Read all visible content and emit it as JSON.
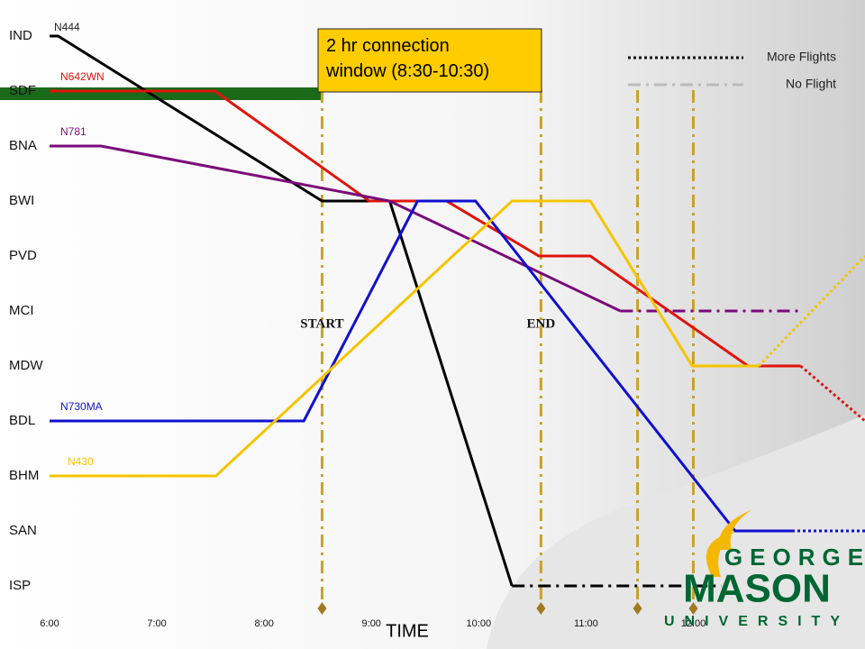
{
  "chart_data": {
    "type": "line",
    "xlabel": "TIME",
    "categories": [
      "IND",
      "SDF",
      "BNA",
      "BWI",
      "PVD",
      "MCI",
      "MDW",
      "BDL",
      "BHM",
      "SAN",
      "ISP"
    ],
    "xlim": [
      6,
      13.6
    ],
    "xticks": [
      {
        "value": 6,
        "label": "6:00"
      },
      {
        "value": 7,
        "label": "7:00"
      },
      {
        "value": 8,
        "label": "8:00"
      },
      {
        "value": 9,
        "label": "9:00"
      },
      {
        "value": 10,
        "label": "10:00"
      },
      {
        "value": 11,
        "label": "11:00"
      },
      {
        "value": 12,
        "label": "12:00"
      }
    ],
    "series": [
      {
        "name": "N444",
        "color": "#000000",
        "x": [
          6,
          6.08,
          8.54,
          9.17,
          10.31
        ],
        "values": [
          "IND",
          "IND",
          "BWI",
          "BWI",
          "ISP"
        ],
        "ext": {
          "style": "dash-dot",
          "x": [
            10.31,
            12.26
          ],
          "values": [
            "ISP",
            "ISP"
          ]
        }
      },
      {
        "name": "N642WN",
        "color": "#e0140a",
        "x": [
          6,
          7.54,
          8.98,
          9.7,
          10.56,
          11.04,
          12.51,
          13.0
        ],
        "values": [
          "SDF",
          "SDF",
          "BWI",
          "BWI",
          "PVD",
          "PVD",
          "MDW",
          "MDW"
        ],
        "ext": {
          "style": "dotted",
          "x": [
            13.0,
            13.6
          ],
          "values": [
            "MDW",
            "BDL"
          ]
        }
      },
      {
        "name": "N781",
        "color": "#7a0a7a",
        "x": [
          6,
          6.48,
          9.17,
          11.32
        ],
        "values": [
          "BNA",
          "BNA",
          "BWI",
          "MCI"
        ],
        "ext": {
          "style": "dash-dot",
          "x": [
            11.32,
            13.0
          ],
          "values": [
            "MCI",
            "MCI"
          ]
        }
      },
      {
        "name": "N730MA",
        "color": "#1010d0",
        "x": [
          6,
          8.37,
          9.43,
          9.97,
          12.39,
          12.92
        ],
        "values": [
          "BDL",
          "BDL",
          "BWI",
          "BWI",
          "SAN",
          "SAN"
        ],
        "ext": {
          "style": "dotted",
          "x": [
            12.92,
            13.6
          ],
          "values": [
            "SAN",
            "SAN"
          ]
        }
      },
      {
        "name": "N430",
        "color": "#f5c400",
        "x": [
          6,
          7.55,
          10.31,
          11.04,
          11.99,
          12.61
        ],
        "values": [
          "BHM",
          "BHM",
          "BWI",
          "BWI",
          "MDW",
          "MDW"
        ],
        "ext": {
          "style": "dotted",
          "x": [
            12.61,
            13.6
          ],
          "values": [
            "MDW",
            "PVD"
          ]
        }
      }
    ],
    "markers": [
      {
        "x": 8.54,
        "label": "START"
      },
      {
        "x": 10.58,
        "label": "END"
      },
      {
        "x": 11.48
      },
      {
        "x": 12.0
      }
    ],
    "annotation": "2 hr connection window (8:30-10:30)",
    "legend": [
      {
        "label": "More Flights",
        "style": "dotted"
      },
      {
        "label": "No Flight",
        "style": "dash-dot"
      }
    ],
    "logo": {
      "line1": "GEORGE",
      "line2": "MASON",
      "line3": "UNIVERSITY"
    }
  }
}
